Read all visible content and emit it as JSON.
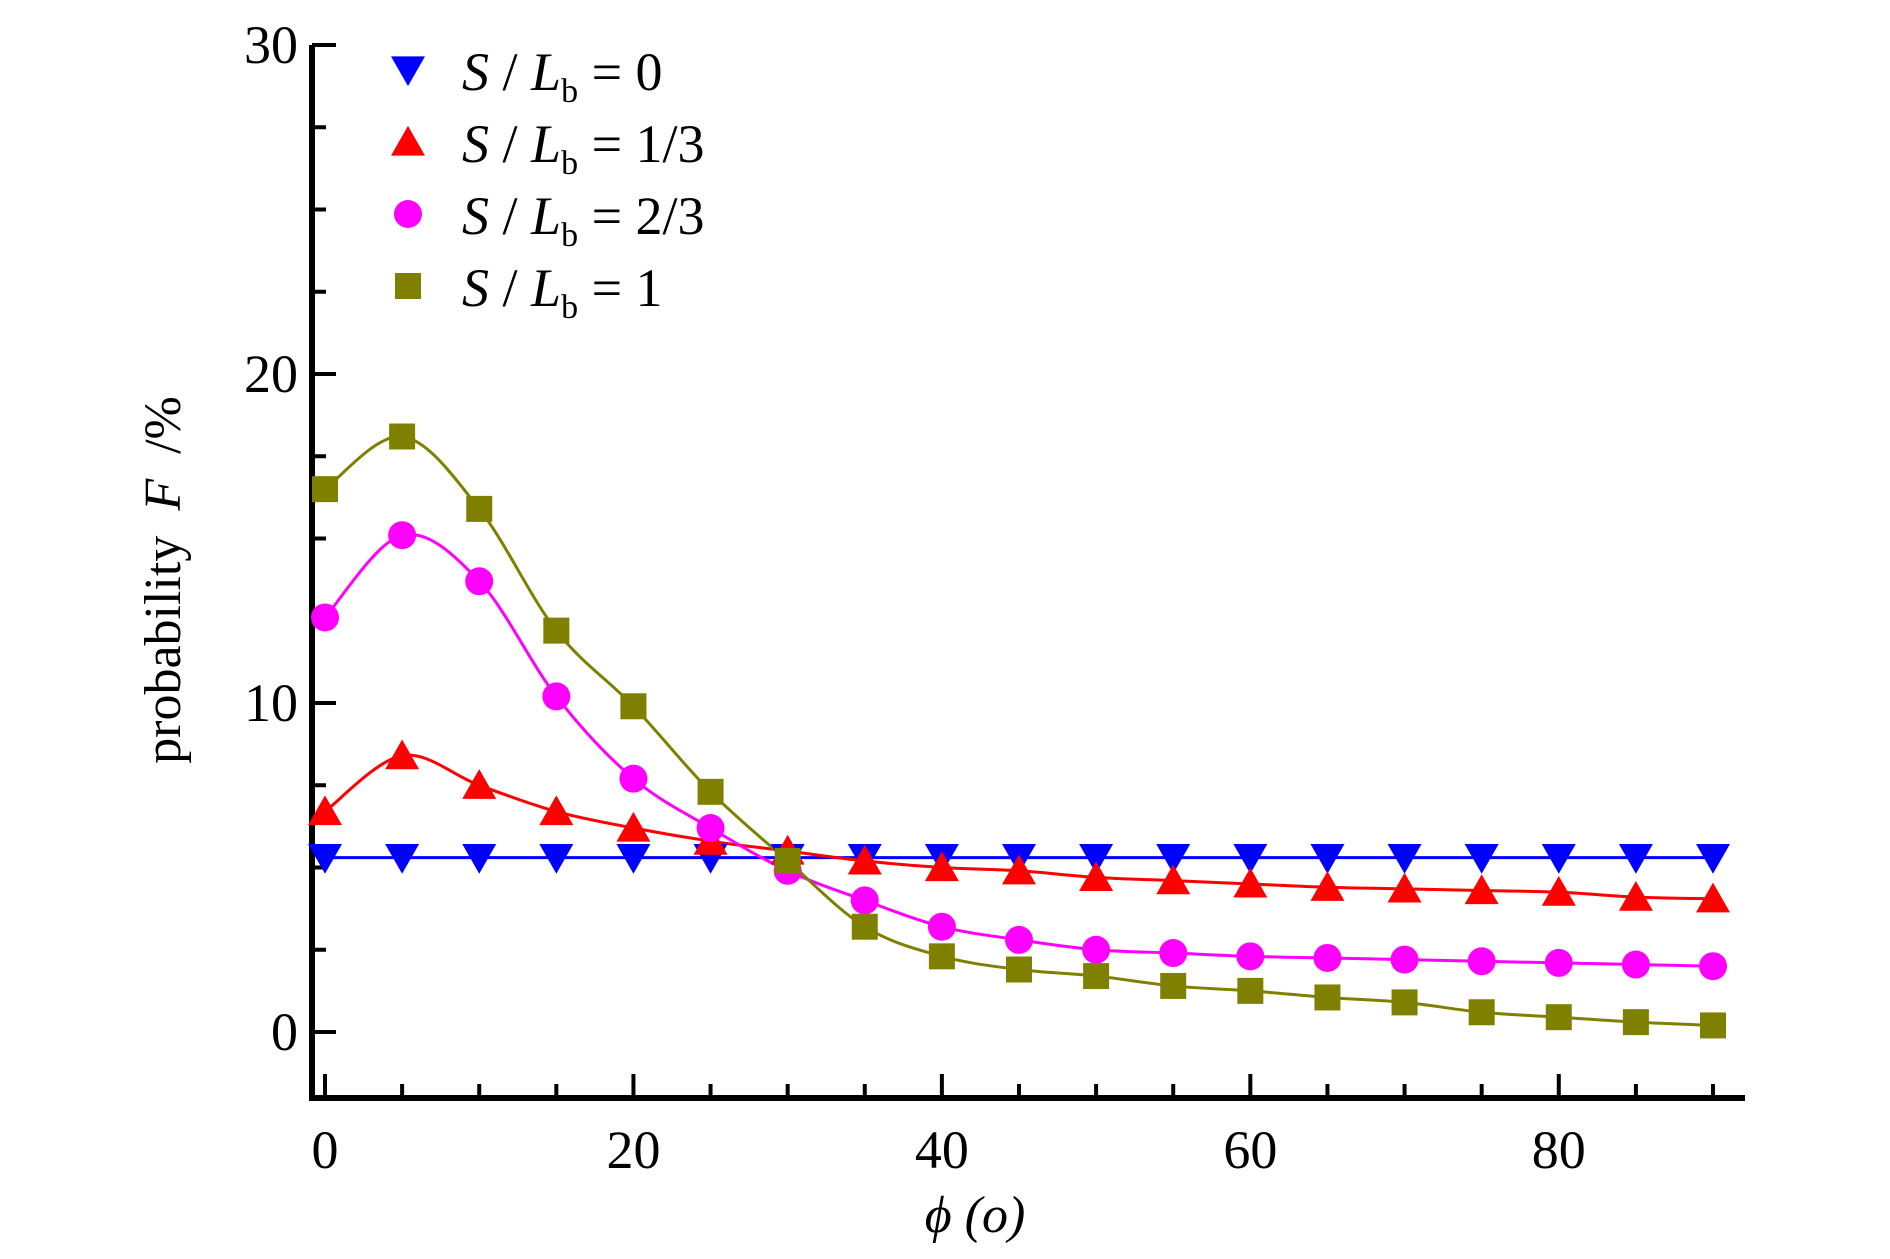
{
  "chart_data": {
    "type": "line",
    "xlabel": "ϕ (o)",
    "ylabel_text": "probability",
    "ylabel_var": "F",
    "ylabel_unit": "/%",
    "xlim": [
      -1,
      92
    ],
    "ylim": [
      -2,
      30
    ],
    "xticks": [
      0,
      20,
      40,
      60,
      80
    ],
    "yticks": [
      0,
      10,
      20,
      30
    ],
    "x": [
      0,
      5,
      10,
      15,
      20,
      25,
      30,
      35,
      40,
      45,
      50,
      55,
      60,
      65,
      70,
      75,
      80,
      85,
      90
    ],
    "legend_position": "top-left",
    "grid": false,
    "series": [
      {
        "name": "S / Lb = 0",
        "legend_var": "S",
        "legend_sep": " / ",
        "legend_var2": "L",
        "legend_sub": "b",
        "legend_val": " = 0",
        "marker": "triangle-down",
        "color": "#0000ff",
        "values": [
          5.3,
          5.3,
          5.3,
          5.3,
          5.3,
          5.3,
          5.3,
          5.3,
          5.3,
          5.3,
          5.3,
          5.3,
          5.3,
          5.3,
          5.3,
          5.3,
          5.3,
          5.3,
          5.3
        ]
      },
      {
        "name": "S / Lb = 1/3",
        "legend_var": "S",
        "legend_sep": " / ",
        "legend_var2": "L",
        "legend_sub": "b",
        "legend_val": " = 1/3",
        "marker": "triangle-up",
        "color": "#ff0000",
        "values": [
          6.7,
          8.4,
          7.5,
          6.7,
          6.2,
          5.8,
          5.5,
          5.2,
          5.0,
          4.9,
          4.7,
          4.6,
          4.5,
          4.4,
          4.35,
          4.3,
          4.25,
          4.1,
          4.05
        ]
      },
      {
        "name": "S / Lb = 2/3",
        "legend_var": "S",
        "legend_sep": " / ",
        "legend_var2": "L",
        "legend_sub": "b",
        "legend_val": " = 2/3",
        "marker": "circle",
        "color": "#ff00ff",
        "values": [
          12.6,
          15.1,
          13.7,
          10.2,
          7.7,
          6.2,
          4.9,
          4.0,
          3.2,
          2.8,
          2.5,
          2.4,
          2.3,
          2.25,
          2.2,
          2.15,
          2.1,
          2.05,
          2.0
        ]
      },
      {
        "name": "S / Lb = 1",
        "legend_var": "S",
        "legend_sep": " / ",
        "legend_var2": "L",
        "legend_sub": "b",
        "legend_val": " = 1",
        "marker": "square",
        "color": "#808000",
        "values": [
          16.5,
          18.1,
          15.9,
          12.2,
          9.9,
          7.3,
          5.2,
          3.2,
          2.3,
          1.9,
          1.7,
          1.4,
          1.25,
          1.05,
          0.9,
          0.6,
          0.45,
          0.3,
          0.2
        ]
      }
    ]
  }
}
